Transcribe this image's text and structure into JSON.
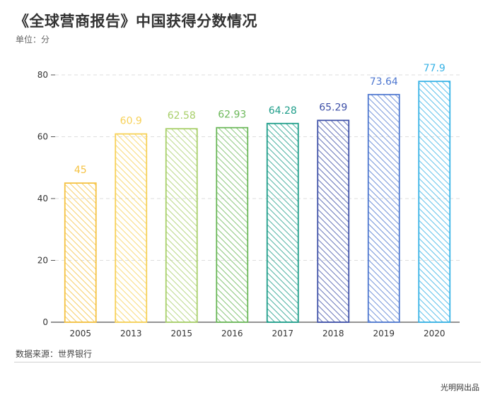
{
  "header": {
    "title": "《全球营商报告》中国获得分数情况",
    "unit": "单位：分"
  },
  "footer": {
    "source": "数据来源：世界银行",
    "credit": "光明网出品"
  },
  "chart_data": {
    "type": "bar",
    "title": "《全球营商报告》中国获得分数情况",
    "xlabel": "",
    "ylabel": "单位：分",
    "ylim": [
      0,
      80
    ],
    "yticks": [
      0,
      20,
      40,
      60,
      80
    ],
    "grid": true,
    "categories": [
      "2005",
      "2013",
      "2015",
      "2016",
      "2017",
      "2018",
      "2019",
      "2020"
    ],
    "values": [
      45,
      60.9,
      62.58,
      62.93,
      64.28,
      65.29,
      73.64,
      77.9
    ],
    "labels": [
      "45",
      "60.9",
      "62.58",
      "62.93",
      "64.28",
      "65.29",
      "73.64",
      "77.9"
    ],
    "colors": [
      "#f5c242",
      "#f7d158",
      "#a8cf6a",
      "#6cb85a",
      "#1f9e8a",
      "#3f51a8",
      "#4f78d0",
      "#36b2e6"
    ]
  }
}
